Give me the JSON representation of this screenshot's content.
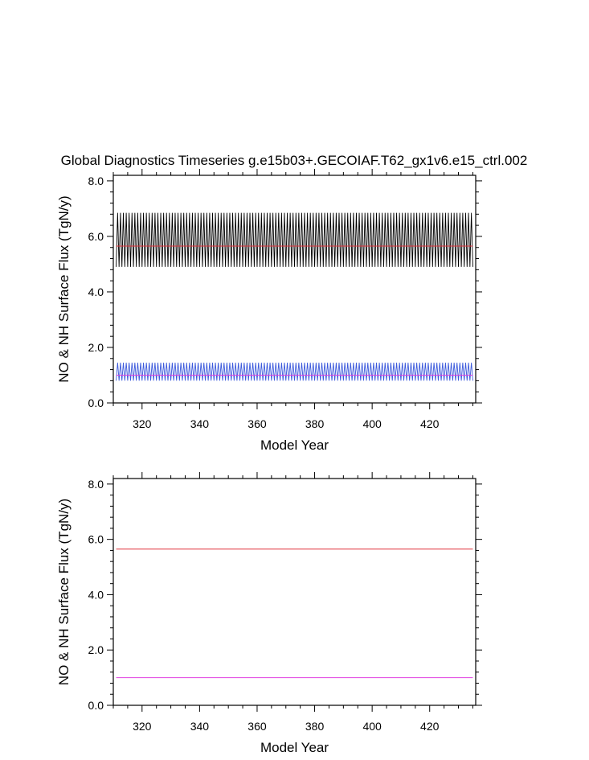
{
  "title": "Global Diagnostics Timeseries g.e15b03+.GECOIAF.T62_gx1v6.e15_ctrl.002",
  "colors": {
    "black_series": "#000000",
    "red_series": "#e0303a",
    "blue_series": "#3c5adc",
    "magenta_series": "#e040e0",
    "frame": "#000000"
  },
  "chart_data": [
    {
      "type": "line",
      "xlabel": "Model Year",
      "ylabel": "NO & NH Surface Flux (TgN/y)",
      "xlim": [
        310,
        436
      ],
      "ylim": [
        0.0,
        8.2
      ],
      "x_ticks": [
        320,
        340,
        360,
        380,
        400,
        420
      ],
      "x_tick_labels": [
        "320",
        "340",
        "360",
        "380",
        "400",
        "420"
      ],
      "y_ticks": [
        0.0,
        2.0,
        4.0,
        6.0,
        8.0
      ],
      "y_tick_labels": [
        "0.0",
        "2.0",
        "4.0",
        "6.0",
        "8.0"
      ],
      "grid": false,
      "series": [
        {
          "kind": "seasonal",
          "color": "black_series",
          "x_start": 311,
          "x_end": 435,
          "period_years": 1,
          "min": 4.9,
          "max": 6.85
        },
        {
          "kind": "constant",
          "color": "red_series",
          "x_start": 311,
          "x_end": 435,
          "value": 5.65
        },
        {
          "kind": "seasonal",
          "color": "blue_series",
          "x_start": 311,
          "x_end": 435,
          "period_years": 1,
          "min": 0.8,
          "max": 1.45
        },
        {
          "kind": "constant",
          "color": "magenta_series",
          "x_start": 311,
          "x_end": 435,
          "value": 1.0
        }
      ]
    },
    {
      "type": "line",
      "xlabel": "Model Year",
      "ylabel": "NO & NH Surface Flux (TgN/y)",
      "xlim": [
        310,
        436
      ],
      "ylim": [
        0.0,
        8.2
      ],
      "x_ticks": [
        320,
        340,
        360,
        380,
        400,
        420
      ],
      "x_tick_labels": [
        "320",
        "340",
        "360",
        "380",
        "400",
        "420"
      ],
      "y_ticks": [
        0.0,
        2.0,
        4.0,
        6.0,
        8.0
      ],
      "y_tick_labels": [
        "0.0",
        "2.0",
        "4.0",
        "6.0",
        "8.0"
      ],
      "grid": false,
      "series": [
        {
          "kind": "constant",
          "color": "red_series",
          "x_start": 311,
          "x_end": 435,
          "value": 5.65
        },
        {
          "kind": "constant",
          "color": "magenta_series",
          "x_start": 311,
          "x_end": 435,
          "value": 1.0
        }
      ]
    }
  ]
}
